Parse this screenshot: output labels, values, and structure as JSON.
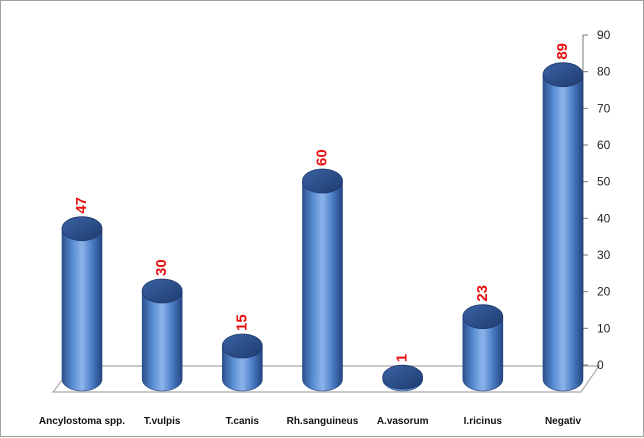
{
  "chart_data": {
    "type": "bar",
    "style": "3d-cylinder",
    "title": "",
    "xlabel": "",
    "ylabel": "",
    "categories": [
      "Ancylostoma spp.",
      "T.vulpis",
      "T.canis",
      "Rh.sanguineus",
      "A.vasorum",
      "I.ricinus",
      "Negativ"
    ],
    "values": [
      47,
      30,
      15,
      60,
      1,
      23,
      89
    ],
    "axis_values": [
      41,
      24,
      9,
      54,
      0.5,
      17,
      83
    ],
    "ylim": [
      0,
      90
    ],
    "yticks": [
      "0",
      "10",
      "20",
      "30",
      "40",
      "50",
      "60",
      "70",
      "80",
      "90"
    ],
    "y_axis_side": "right",
    "grid": false,
    "legend": "none",
    "colors": {
      "bar": "#3f74c0",
      "bar_top": "#2d4f8a",
      "data_label": "#e81010",
      "floor": "#a9a9a9"
    }
  }
}
